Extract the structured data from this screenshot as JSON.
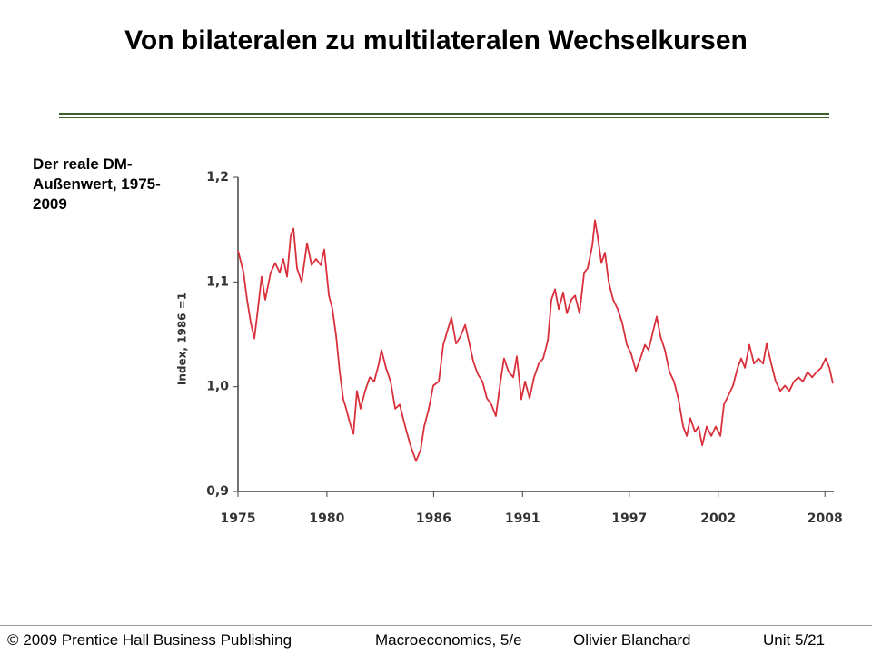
{
  "slide": {
    "title": "Von bilateralen zu multilateralen Wechselkursen",
    "caption": "Der reale DM-Außenwert, 1975-2009",
    "footer": [
      "© 2009 Prentice Hall Business Publishing",
      "Macroeconomics, 5/e",
      "Olivier Blanchard",
      "Unit 5/21"
    ]
  },
  "chart_data": {
    "type": "line",
    "y_label": "Index, 1986 =1",
    "x": [
      1975.0,
      1975.31,
      1975.51,
      1975.72,
      1975.92,
      1976.12,
      1976.33,
      1976.53,
      1976.84,
      1977.09,
      1977.35,
      1977.55,
      1977.76,
      1977.96,
      1978.12,
      1978.32,
      1978.58,
      1978.88,
      1979.14,
      1979.39,
      1979.65,
      1979.85,
      1980.11,
      1980.31,
      1980.52,
      1980.72,
      1980.92,
      1981.08,
      1981.28,
      1981.49,
      1981.69,
      1981.89,
      1982.15,
      1982.41,
      1982.66,
      1982.92,
      1983.07,
      1983.32,
      1983.58,
      1983.84,
      1984.09,
      1984.4,
      1984.7,
      1985.01,
      1985.27,
      1985.47,
      1985.73,
      1985.98,
      1986.29,
      1986.54,
      1986.8,
      1987.0,
      1987.26,
      1987.51,
      1987.77,
      1987.97,
      1988.23,
      1988.48,
      1988.74,
      1988.99,
      1989.25,
      1989.5,
      1989.76,
      1989.96,
      1990.22,
      1990.48,
      1990.68,
      1990.93,
      1991.14,
      1991.39,
      1991.65,
      1991.91,
      1992.16,
      1992.42,
      1992.62,
      1992.82,
      1993.03,
      1993.28,
      1993.49,
      1993.74,
      1993.95,
      1994.2,
      1994.46,
      1994.66,
      1994.92,
      1995.07,
      1995.22,
      1995.43,
      1995.63,
      1995.84,
      1996.09,
      1996.35,
      1996.6,
      1996.86,
      1997.11,
      1997.37,
      1997.63,
      1997.88,
      1998.08,
      1998.34,
      1998.54,
      1998.75,
      1999.0,
      1999.26,
      1999.51,
      1999.77,
      2000.03,
      2000.23,
      2000.43,
      2000.69,
      2000.89,
      2001.1,
      2001.35,
      2001.61,
      2001.86,
      2002.12,
      2002.32,
      2002.58,
      2002.83,
      2003.09,
      2003.29,
      2003.5,
      2003.75,
      2004.01,
      2004.26,
      2004.52,
      2004.72,
      2004.98,
      2005.23,
      2005.49,
      2005.75,
      2006.0,
      2006.26,
      2006.51,
      2006.77,
      2007.02,
      2007.28,
      2007.53,
      2007.79,
      2008.04,
      2008.25,
      2008.45
    ],
    "series": [
      {
        "name": "DM",
        "color": "#d9303c",
        "values": [
          1.13,
          1.109,
          1.083,
          1.061,
          1.046,
          1.074,
          1.105,
          1.083,
          1.109,
          1.118,
          1.109,
          1.122,
          1.105,
          1.144,
          1.151,
          1.113,
          1.1,
          1.137,
          1.116,
          1.122,
          1.116,
          1.131,
          1.087,
          1.074,
          1.048,
          1.014,
          0.988,
          0.979,
          0.966,
          0.955,
          0.996,
          0.979,
          0.996,
          1.009,
          1.005,
          1.022,
          1.035,
          1.018,
          1.005,
          0.979,
          0.983,
          0.962,
          0.944,
          0.929,
          0.94,
          0.962,
          0.979,
          1.001,
          1.005,
          1.04,
          1.055,
          1.066,
          1.041,
          1.048,
          1.059,
          1.044,
          1.024,
          1.012,
          1.005,
          0.989,
          0.983,
          0.972,
          1.005,
          1.027,
          1.014,
          1.009,
          1.029,
          0.988,
          1.005,
          0.989,
          1.009,
          1.022,
          1.027,
          1.044,
          1.083,
          1.093,
          1.074,
          1.09,
          1.07,
          1.083,
          1.087,
          1.07,
          1.109,
          1.113,
          1.135,
          1.159,
          1.144,
          1.118,
          1.128,
          1.1,
          1.083,
          1.074,
          1.061,
          1.04,
          1.031,
          1.015,
          1.027,
          1.04,
          1.035,
          1.053,
          1.067,
          1.048,
          1.035,
          1.014,
          1.005,
          0.988,
          0.962,
          0.953,
          0.97,
          0.957,
          0.962,
          0.944,
          0.962,
          0.953,
          0.962,
          0.953,
          0.983,
          0.992,
          1.001,
          1.018,
          1.027,
          1.018,
          1.04,
          1.022,
          1.027,
          1.022,
          1.041,
          1.022,
          1.005,
          0.996,
          1.001,
          0.996,
          1.005,
          1.009,
          1.005,
          1.014,
          1.009,
          1.014,
          1.018,
          1.027,
          1.018,
          1.003
        ]
      }
    ],
    "xlim": [
      1975,
      2008.5
    ],
    "xticks": [
      1975,
      1980,
      1986,
      1991,
      1997,
      2002,
      2008
    ],
    "ylim": [
      0.9,
      1.2
    ],
    "yticks": [
      {
        "value": 1.2,
        "label": "1,2"
      },
      {
        "value": 1.1,
        "label": "1,1"
      },
      {
        "value": 1.0,
        "label": "1,0"
      },
      {
        "value": 0.9,
        "label": "0,9"
      }
    ]
  }
}
